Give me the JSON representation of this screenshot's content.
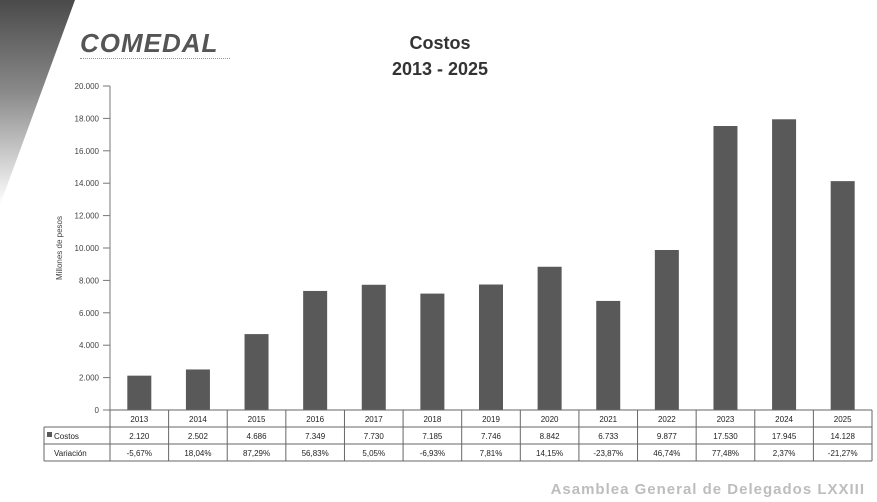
{
  "branding": {
    "logo_text": "COMEDAL",
    "footer": "Asamblea General de Delegados LXXIII"
  },
  "chart_data": {
    "type": "bar",
    "title": "Costos",
    "subtitle": "2013 - 2025",
    "ylabel": "Millones de pesos",
    "ylim": [
      0,
      20000
    ],
    "yticks": [
      "0",
      "2.000",
      "4.000",
      "6.000",
      "8.000",
      "10.000",
      "12.000",
      "14.000",
      "16.000",
      "18.000",
      "20.000"
    ],
    "categories": [
      "2013",
      "2014",
      "2015",
      "2016",
      "2017",
      "2018",
      "2019",
      "2020",
      "2021",
      "2022",
      "2023",
      "2024",
      "2025"
    ],
    "values": [
      2120,
      2502,
      4686,
      7349,
      7730,
      7185,
      7746,
      8842,
      6733,
      9877,
      17530,
      17945,
      14128
    ],
    "bar_color": "#595959",
    "grid": false,
    "table": {
      "rows": [
        {
          "label": "Costos",
          "values": [
            "2.120",
            "2.502",
            "4.686",
            "7.349",
            "7.730",
            "7.185",
            "7.746",
            "8.842",
            "6.733",
            "9.877",
            "17.530",
            "17.945",
            "14.128"
          ]
        },
        {
          "label": "Variación",
          "values": [
            "-5,67%",
            "18,04%",
            "87,29%",
            "56,83%",
            "5,05%",
            "-6,93%",
            "7,81%",
            "14,15%",
            "-23,87%",
            "46,74%",
            "77,48%",
            "2,37%",
            "-21,27%"
          ]
        }
      ]
    }
  }
}
